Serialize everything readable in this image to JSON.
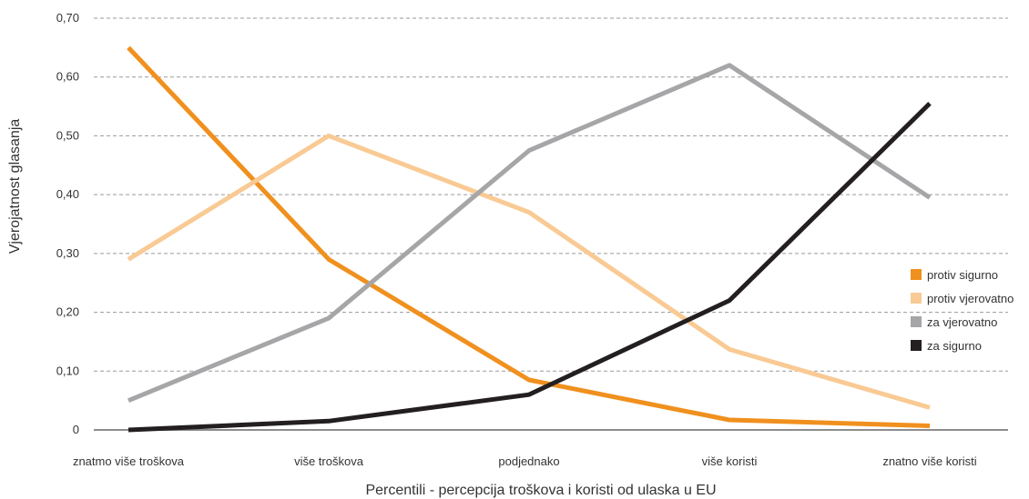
{
  "chart_data": {
    "type": "line",
    "title": "",
    "xlabel": "Percentili - percepcija troškova i koristi od ulaska u EU",
    "ylabel": "Vjerojatnost glasanja",
    "categories": [
      "znatmo više troškova",
      "više troškova",
      "podjednako",
      "više koristi",
      "znatno više koristi"
    ],
    "y_ticks": [
      "0",
      "0,10",
      "0,20",
      "0,30",
      "0,40",
      "0,50",
      "0,60",
      "0,70"
    ],
    "y_tick_values": [
      0,
      0.1,
      0.2,
      0.3,
      0.4,
      0.5,
      0.6,
      0.7
    ],
    "ylim": [
      0,
      0.7
    ],
    "grid": "horizontal dashed",
    "legend_position": "right",
    "series": [
      {
        "name": "protiv sigurno",
        "color": "#f0901e",
        "values": [
          0.65,
          0.29,
          0.085,
          0.017,
          0.007
        ]
      },
      {
        "name": "protiv vjerovatno",
        "color": "#f9ca94",
        "values": [
          0.29,
          0.5,
          0.37,
          0.137,
          0.038
        ]
      },
      {
        "name": "za vjerovatno",
        "color": "#a6a6a8",
        "values": [
          0.05,
          0.19,
          0.475,
          0.62,
          0.395
        ]
      },
      {
        "name": "za sigurno",
        "color": "#231f20",
        "values": [
          0.0,
          0.015,
          0.06,
          0.22,
          0.555
        ]
      }
    ]
  }
}
